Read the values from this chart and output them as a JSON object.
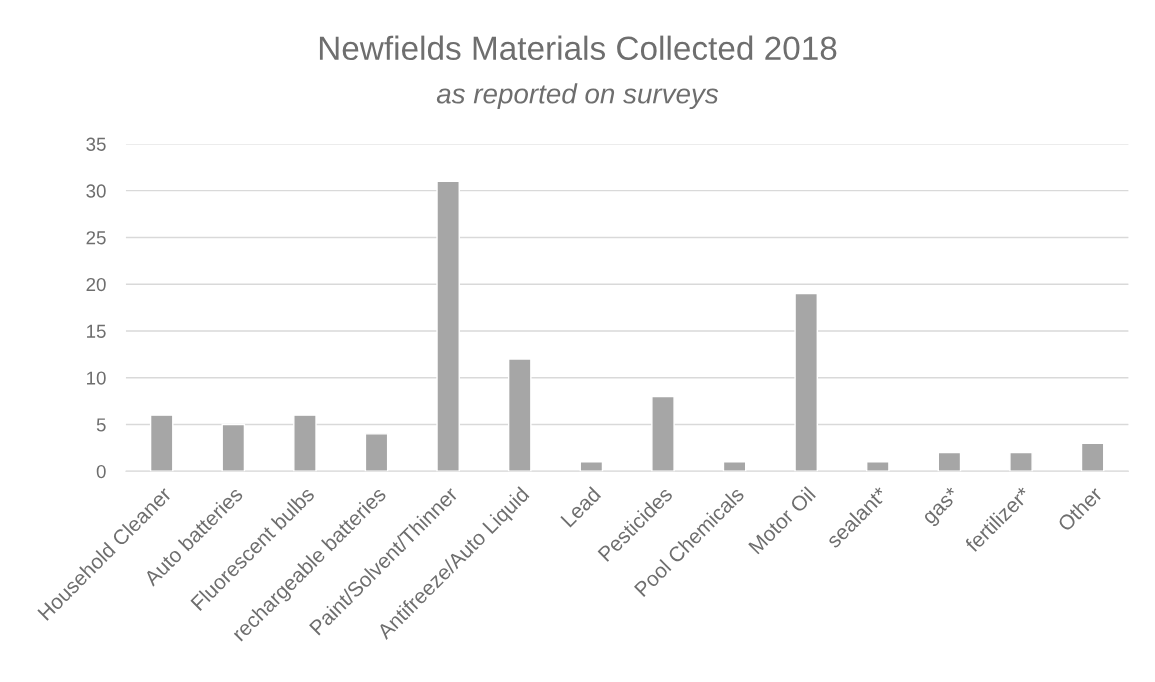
{
  "chart_data": {
    "type": "bar",
    "title": "Newfields Materials Collected 2018",
    "subtitle": "as reported on surveys",
    "categories": [
      "Household Cleaner",
      "Auto batteries",
      "Fluorescent bulbs",
      "rechargeable batteries",
      "Paint/Solvent/Thinner",
      "Antifreeze/Auto Liquid",
      "Lead",
      "Pesticides",
      "Pool Chemicals",
      "Motor Oil",
      "sealant*",
      "gas*",
      "fertilizer*",
      "Other"
    ],
    "values": [
      6,
      5,
      6,
      4,
      31,
      12,
      1,
      8,
      1,
      19,
      1,
      2,
      2,
      3
    ],
    "color": "#a6a6a6",
    "ylim": [
      0,
      35
    ],
    "yticks": [
      0,
      5,
      10,
      15,
      20,
      25,
      30,
      35
    ],
    "grid": "y"
  }
}
